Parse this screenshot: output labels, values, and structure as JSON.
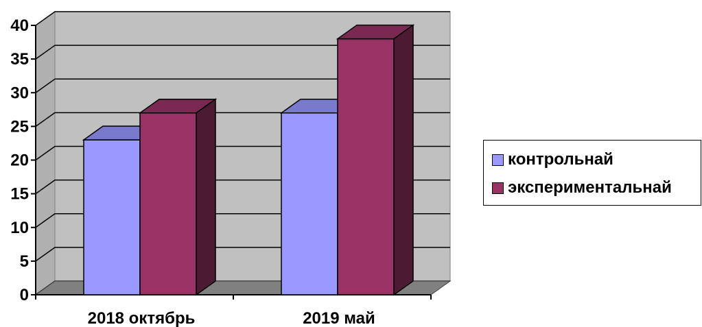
{
  "chart_data": {
    "type": "bar",
    "style": "3d-clustered-column",
    "categories": [
      "2018 октябрь",
      "2019 май"
    ],
    "series": [
      {
        "name": "контрольнай",
        "values": [
          23,
          27
        ],
        "color": "#9999ff",
        "side_color": "#4d4d80",
        "top_color": "#7a7acc"
      },
      {
        "name": "экспериментальнай",
        "values": [
          27,
          38
        ],
        "color": "#993366",
        "side_color": "#4d1a33",
        "top_color": "#7a2952"
      }
    ],
    "ylim": [
      0,
      40
    ],
    "yticks": [
      "0",
      "5",
      "10",
      "15",
      "20",
      "25",
      "30",
      "35",
      "40"
    ],
    "ytick_step": 5,
    "grid": true,
    "wall_color": "#c0c0c0",
    "floor_color": "#808080",
    "legend": "right"
  }
}
